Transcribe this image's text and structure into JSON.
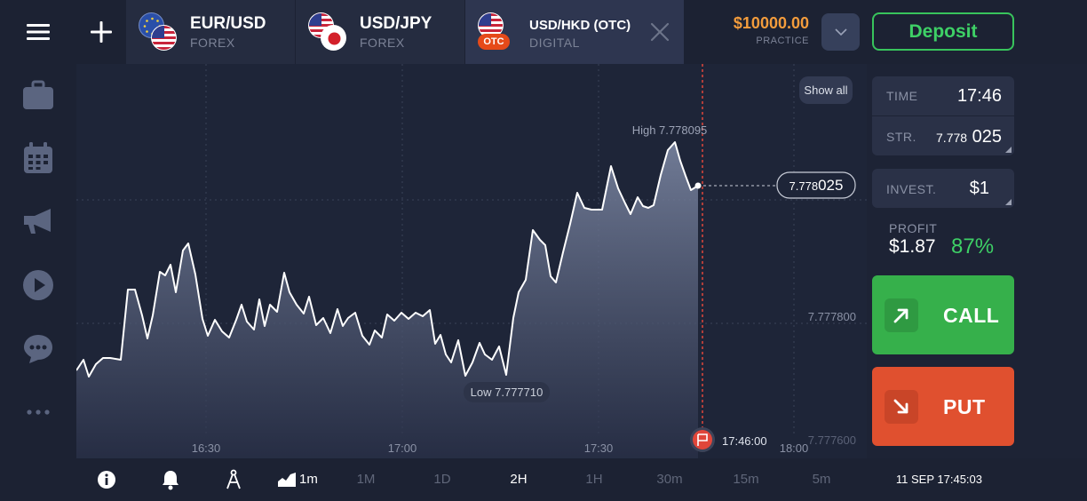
{
  "header": {
    "tabs": [
      {
        "name": "EUR/USD",
        "type": "FOREX"
      },
      {
        "name": "USD/JPY",
        "type": "FOREX"
      },
      {
        "name": "USD/HKD (OTC)",
        "type": "DIGITAL",
        "badge": "OTC"
      }
    ],
    "balance": {
      "amount": "$10000.00",
      "mode": "PRACTICE"
    },
    "deposit_label": "Deposit"
  },
  "chart": {
    "show_all_label": "Show all",
    "high_label": "High 7.778095",
    "low_label": "Low 7.777710",
    "current_price_prefix": "7.778",
    "current_price_suffix": "025",
    "price_ticks": [
      "7.777800",
      "7.777600"
    ],
    "time_ticks": [
      "16:30",
      "17:00",
      "17:30",
      "18:00"
    ],
    "expiry_label": "17:46:00",
    "colors": {
      "line": "#ffffff",
      "fill_top": "#7f8aa6",
      "fill_bottom": "#2a3149",
      "expiry": "#e0463a"
    }
  },
  "panel": {
    "time_label": "TIME",
    "time_value": "17:46",
    "strike_label": "STR.",
    "strike_prefix": "7.778",
    "strike_suffix": "025",
    "invest_label": "INVEST.",
    "invest_value": "$1",
    "profit_label": "PROFIT",
    "profit_amount": "$1.87",
    "profit_percent": "87%",
    "call_label": "CALL",
    "put_label": "PUT",
    "colors": {
      "call": "#36b04b",
      "put": "#e0502f",
      "profit": "#3ed066"
    }
  },
  "bottom": {
    "chart_type_label": "1m",
    "timeframes": [
      "1M",
      "1D",
      "2H",
      "1H",
      "30m",
      "15m",
      "5m"
    ],
    "active_timeframe": "2H",
    "server_time": "11 SEP 17:45:03"
  },
  "sidebar": {
    "icons": [
      "menu-icon",
      "portfolio-icon",
      "calendar-icon",
      "megaphone-icon",
      "play-icon",
      "chat-icon",
      "more-icon"
    ]
  }
}
